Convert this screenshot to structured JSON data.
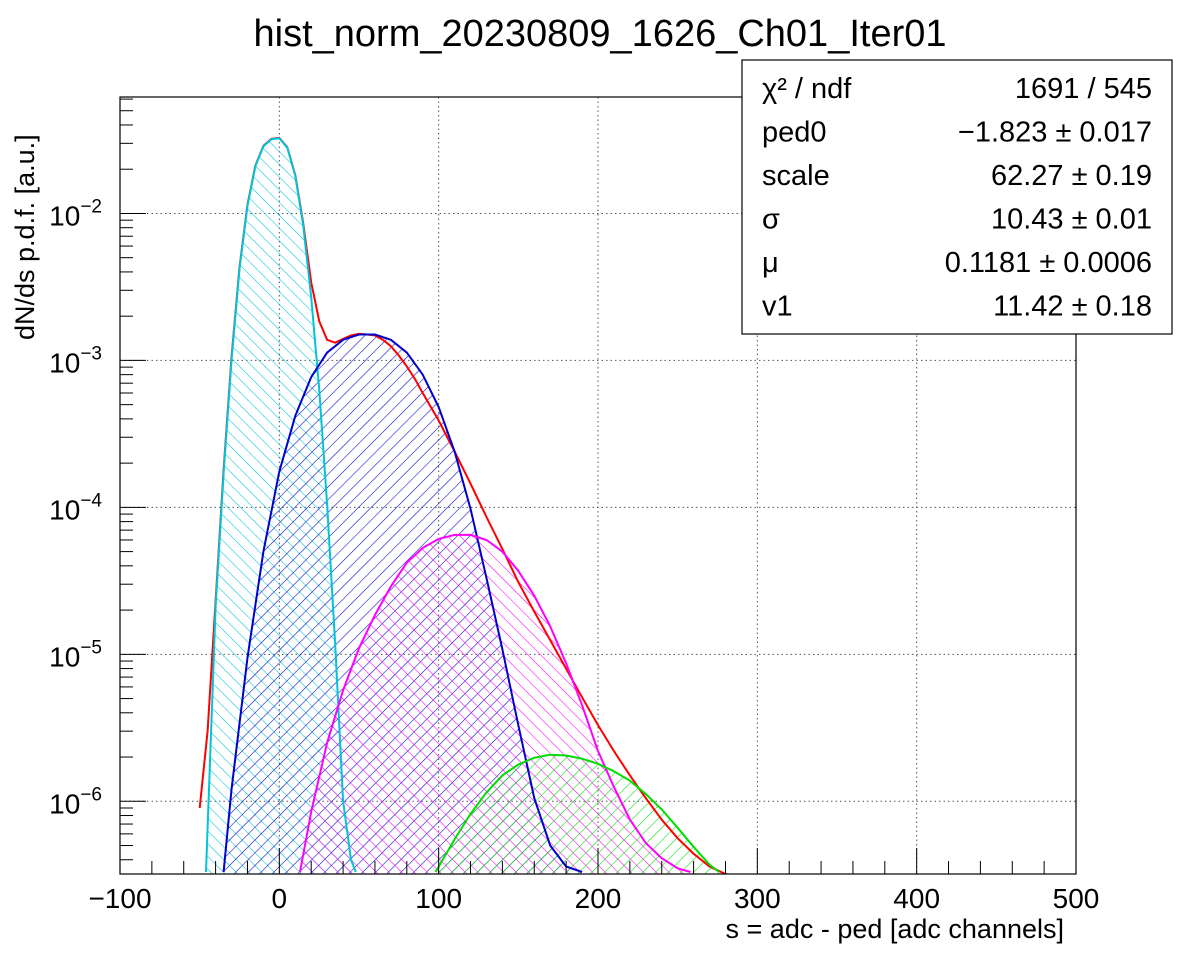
{
  "chart_data": {
    "type": "line",
    "title": "hist_norm_20230809_1626_Ch01_Iter01",
    "xlabel": "s = adc - ped [adc channels]",
    "ylabel": "dN/ds p.d.f. [a.u.]",
    "xlim": [
      -100,
      500
    ],
    "ylim": [
      3.2e-07,
      0.062
    ],
    "yscale": "log",
    "grid": true,
    "x_ticks": [
      {
        "value": -100,
        "label": "−100"
      },
      {
        "value": 0,
        "label": "0"
      },
      {
        "value": 100,
        "label": "100"
      },
      {
        "value": 200,
        "label": "200"
      },
      {
        "value": 300,
        "label": "300"
      },
      {
        "value": 400,
        "label": "400"
      },
      {
        "value": 500,
        "label": "500"
      }
    ],
    "y_ticks": [
      {
        "value": 1e-06,
        "base": "10",
        "exp": "−6"
      },
      {
        "value": 1e-05,
        "base": "10",
        "exp": "−5"
      },
      {
        "value": 0.0001,
        "base": "10",
        "exp": "−4"
      },
      {
        "value": 0.001,
        "base": "10",
        "exp": "−3"
      },
      {
        "value": 0.01,
        "base": "10",
        "exp": "−2"
      }
    ],
    "series": [
      {
        "color": "#ff0000",
        "fill": "none",
        "x": [
          -50,
          -45,
          -40,
          -35,
          -30,
          -25,
          -20,
          -15,
          -10,
          -5,
          0,
          5,
          10,
          15,
          20,
          25,
          30,
          35,
          40,
          45,
          50,
          55,
          60,
          65,
          70,
          75,
          80,
          85,
          90,
          100,
          110,
          120,
          130,
          140,
          150,
          160,
          170,
          180,
          190,
          200,
          210,
          220,
          230,
          240,
          250,
          260,
          270,
          280,
          285
        ],
        "y": [
          9e-07,
          3e-06,
          2.3e-05,
          0.00018,
          0.00105,
          0.0043,
          0.0115,
          0.0212,
          0.0288,
          0.0322,
          0.0327,
          0.0282,
          0.0182,
          0.0086,
          0.0034,
          0.00185,
          0.00138,
          0.00132,
          0.0014,
          0.00148,
          0.00152,
          0.0015,
          0.00148,
          0.00138,
          0.00125,
          0.00108,
          0.00091,
          0.00075,
          0.0006,
          0.00039,
          0.00024,
          0.000145,
          8.6e-05,
          5.2e-05,
          3.1e-05,
          1.95e-05,
          1.25e-05,
          8e-06,
          5.1e-06,
          3.3e-06,
          2.2e-06,
          1.5e-06,
          1.05e-06,
          7.5e-07,
          5.6e-07,
          4.4e-07,
          3.6e-07,
          3.2e-07,
          3.1e-07
        ]
      },
      {
        "color": "#00c4d8",
        "fill": "hatch",
        "x": [
          -46,
          -40,
          -35,
          -30,
          -25,
          -20,
          -15,
          -10,
          -5,
          0,
          5,
          10,
          15,
          20,
          25,
          30,
          35,
          40,
          45,
          48
        ],
        "y": [
          3.3e-07,
          2.1e-05,
          0.00017,
          0.001,
          0.0042,
          0.0113,
          0.021,
          0.0286,
          0.032,
          0.0325,
          0.028,
          0.018,
          0.0083,
          0.0027,
          0.00064,
          0.000105,
          1.2e-05,
          1e-06,
          4e-07,
          3.3e-07
        ]
      },
      {
        "color": "#0000cc",
        "fill": "hatch",
        "x": [
          -35,
          -30,
          -20,
          -10,
          0,
          10,
          20,
          30,
          40,
          50,
          60,
          70,
          80,
          90,
          100,
          110,
          120,
          130,
          140,
          150,
          160,
          170,
          180,
          190
        ],
        "y": [
          3.3e-07,
          1.2e-06,
          9.5e-06,
          5e-05,
          0.000175,
          0.00042,
          0.00077,
          0.00113,
          0.00138,
          0.0015,
          0.0015,
          0.00138,
          0.00113,
          0.0008,
          0.00048,
          0.00024,
          9.8e-05,
          3.3e-05,
          1.08e-05,
          3.3e-06,
          1.05e-06,
          5e-07,
          3.6e-07,
          3.3e-07
        ]
      },
      {
        "color": "#ff00ff",
        "fill": "hatch",
        "x": [
          13,
          20,
          30,
          40,
          50,
          60,
          70,
          80,
          90,
          100,
          110,
          120,
          130,
          140,
          150,
          160,
          170,
          180,
          190,
          200,
          210,
          220,
          230,
          240,
          250,
          258
        ],
        "y": [
          3.3e-07,
          8.5e-07,
          2.5e-06,
          5.7e-06,
          1.1e-05,
          1.85e-05,
          2.9e-05,
          4.2e-05,
          5.3e-05,
          6.1e-05,
          6.5e-05,
          6.5e-05,
          6e-05,
          5e-05,
          3.7e-05,
          2.5e-05,
          1.55e-05,
          8.7e-06,
          4.5e-06,
          2.2e-06,
          1.25e-06,
          7.5e-07,
          5.2e-07,
          4.1e-07,
          3.5e-07,
          3.3e-07
        ]
      },
      {
        "color": "#00dd00",
        "fill": "hatch",
        "x": [
          98,
          110,
          120,
          130,
          140,
          150,
          160,
          170,
          180,
          190,
          200,
          210,
          220,
          230,
          240,
          250,
          260,
          270,
          276
        ],
        "y": [
          3.3e-07,
          5.5e-07,
          8.2e-07,
          1.15e-06,
          1.5e-06,
          1.78e-06,
          1.98e-06,
          2.07e-06,
          2.05e-06,
          1.95e-06,
          1.8e-06,
          1.6e-06,
          1.38e-06,
          1.12e-06,
          8.8e-07,
          6.6e-07,
          4.9e-07,
          3.7e-07,
          3.3e-07
        ]
      }
    ],
    "stats_box": {
      "rows": [
        {
          "label": "χ² / ndf",
          "value": "1691 / 545"
        },
        {
          "label": "ped0",
          "value": "−1.823 ± 0.017"
        },
        {
          "label": "scale",
          "value": "62.27 ± 0.19"
        },
        {
          "label": "σ",
          "value": "10.43 ± 0.01"
        },
        {
          "label": "μ",
          "value": "0.1181 ± 0.0006"
        },
        {
          "label": "v1",
          "value": "11.42 ± 0.18"
        }
      ]
    }
  }
}
